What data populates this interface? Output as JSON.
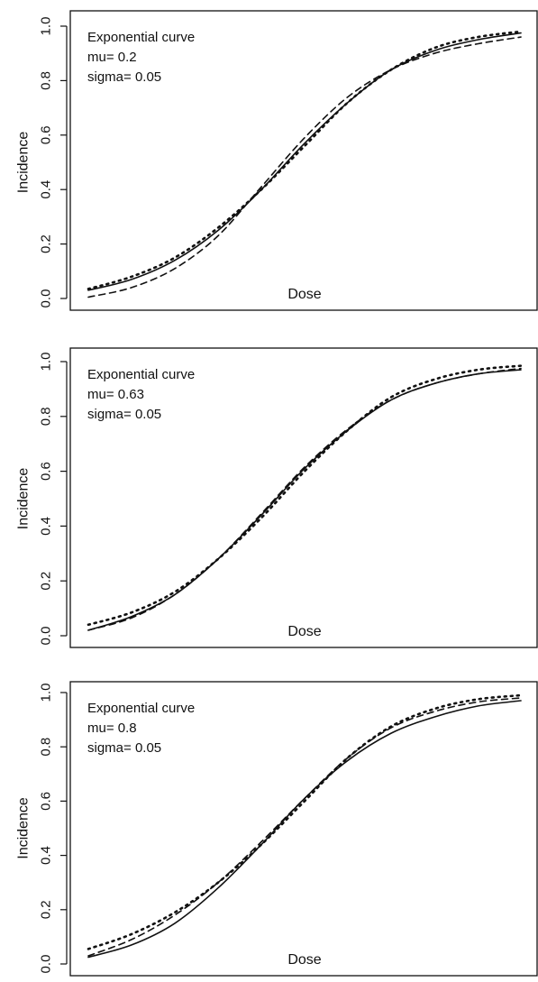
{
  "chart_data": [
    {
      "type": "line",
      "ylabel": "Incidence",
      "xlabel": "Dose",
      "ylim": [
        0,
        1
      ],
      "yticks": [
        "0.0",
        "0.2",
        "0.4",
        "0.6",
        "0.8",
        "1.0"
      ],
      "annotation": [
        "Exponential curve",
        "mu= 0.2",
        "sigma= 0.05"
      ],
      "series": [
        {
          "style": "solid",
          "x": [
            0,
            0.1,
            0.2,
            0.3,
            0.4,
            0.5,
            0.6,
            0.7,
            0.8,
            0.9,
            1.0
          ],
          "y": [
            0.03,
            0.07,
            0.14,
            0.25,
            0.4,
            0.57,
            0.72,
            0.84,
            0.91,
            0.95,
            0.975
          ]
        },
        {
          "style": "dashed",
          "x": [
            0,
            0.1,
            0.2,
            0.3,
            0.4,
            0.5,
            0.6,
            0.7,
            0.8,
            0.9,
            1.0
          ],
          "y": [
            0.005,
            0.04,
            0.11,
            0.23,
            0.41,
            0.59,
            0.74,
            0.84,
            0.9,
            0.935,
            0.96
          ]
        },
        {
          "style": "dotted",
          "x": [
            0,
            0.1,
            0.2,
            0.3,
            0.4,
            0.5,
            0.6,
            0.7,
            0.8,
            0.9,
            1.0
          ],
          "y": [
            0.035,
            0.08,
            0.15,
            0.26,
            0.4,
            0.56,
            0.72,
            0.84,
            0.92,
            0.96,
            0.98
          ]
        }
      ]
    },
    {
      "type": "line",
      "ylabel": "Incidence",
      "xlabel": "Dose",
      "ylim": [
        0,
        1
      ],
      "yticks": [
        "0.0",
        "0.2",
        "0.4",
        "0.6",
        "0.8",
        "1.0"
      ],
      "annotation": [
        "Exponential curve",
        "mu= 0.63",
        "sigma= 0.05"
      ],
      "series": [
        {
          "style": "solid",
          "x": [
            0,
            0.1,
            0.2,
            0.3,
            0.4,
            0.5,
            0.6,
            0.7,
            0.8,
            0.9,
            1.0
          ],
          "y": [
            0.02,
            0.07,
            0.15,
            0.28,
            0.44,
            0.61,
            0.75,
            0.86,
            0.92,
            0.955,
            0.97
          ]
        },
        {
          "style": "dashed",
          "x": [
            0,
            0.1,
            0.2,
            0.3,
            0.4,
            0.5,
            0.6,
            0.7,
            0.8,
            0.9,
            1.0
          ],
          "y": [
            0.02,
            0.065,
            0.15,
            0.28,
            0.445,
            0.615,
            0.755,
            0.86,
            0.92,
            0.955,
            0.975
          ]
        },
        {
          "style": "dotted",
          "x": [
            0,
            0.1,
            0.2,
            0.3,
            0.4,
            0.5,
            0.6,
            0.7,
            0.8,
            0.9,
            1.0
          ],
          "y": [
            0.04,
            0.085,
            0.16,
            0.28,
            0.43,
            0.6,
            0.75,
            0.87,
            0.935,
            0.97,
            0.985
          ]
        }
      ]
    },
    {
      "type": "line",
      "ylabel": "Incidence",
      "xlabel": "Dose",
      "ylim": [
        0,
        1
      ],
      "yticks": [
        "0.0",
        "0.2",
        "0.4",
        "0.6",
        "0.8",
        "1.0"
      ],
      "annotation": [
        "Exponential curve",
        "mu= 0.8",
        "sigma= 0.05"
      ],
      "series": [
        {
          "style": "solid",
          "x": [
            0,
            0.1,
            0.2,
            0.3,
            0.4,
            0.5,
            0.6,
            0.7,
            0.8,
            0.9,
            1.0
          ],
          "y": [
            0.025,
            0.07,
            0.15,
            0.28,
            0.44,
            0.61,
            0.75,
            0.85,
            0.91,
            0.95,
            0.97
          ]
        },
        {
          "style": "dashed",
          "x": [
            0,
            0.1,
            0.2,
            0.3,
            0.4,
            0.5,
            0.6,
            0.7,
            0.8,
            0.9,
            1.0
          ],
          "y": [
            0.03,
            0.09,
            0.18,
            0.3,
            0.45,
            0.61,
            0.76,
            0.87,
            0.93,
            0.965,
            0.98
          ]
        },
        {
          "style": "dotted",
          "x": [
            0,
            0.1,
            0.2,
            0.3,
            0.4,
            0.5,
            0.6,
            0.7,
            0.8,
            0.9,
            1.0
          ],
          "y": [
            0.055,
            0.11,
            0.19,
            0.3,
            0.44,
            0.6,
            0.76,
            0.875,
            0.94,
            0.975,
            0.99
          ]
        }
      ]
    }
  ]
}
